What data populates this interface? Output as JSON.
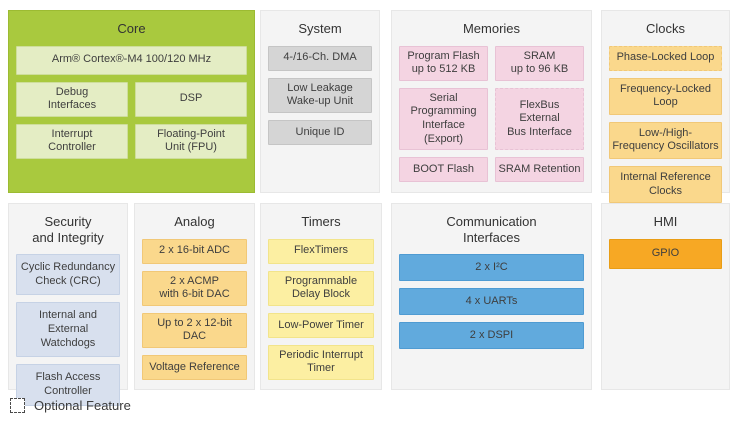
{
  "colors": {
    "core_panel_bg": "#a9c93e",
    "core_block_bg": "#e4edc4",
    "panel_bg": "#f4f4f4",
    "system_block_gray": "#d5d5d5",
    "memories_block_pink": "#f4d4e2",
    "clocks_analog_block_amber": "#fad88c",
    "timers_block_yellow": "#fcefa2",
    "comm_block_blue": "#61aadd",
    "hmi_block_orange": "#f7a824",
    "security_block_bluegray": "#d8e0ee"
  },
  "panels": {
    "core": {
      "title": "Core",
      "blocks": [
        {
          "label": "Arm® Cortex®-M4 100/120 MHz"
        },
        {
          "label": "Debug\nInterfaces"
        },
        {
          "label": "DSP"
        },
        {
          "label": "Interrupt\nController"
        },
        {
          "label": "Floating-Point\nUnit (FPU)"
        }
      ]
    },
    "system": {
      "title": "System",
      "blocks": [
        {
          "label": "4-/16-Ch. DMA"
        },
        {
          "label": "Low Leakage\nWake-up Unit"
        },
        {
          "label": "Unique ID"
        }
      ]
    },
    "memories": {
      "title": "Memories",
      "blocks": [
        {
          "label": "Program Flash\nup to 512 KB"
        },
        {
          "label": "SRAM\nup to 96 KB"
        },
        {
          "label": "Serial Programming\nInterface (Export)"
        },
        {
          "label": "FlexBus External\nBus Interface",
          "optional": true
        },
        {
          "label": "BOOT Flash"
        },
        {
          "label": "SRAM Retention"
        }
      ]
    },
    "clocks": {
      "title": "Clocks",
      "blocks": [
        {
          "label": "Phase-Locked Loop",
          "optional": true
        },
        {
          "label": "Frequency-Locked\nLoop"
        },
        {
          "label": "Low-/High-\nFrequency Oscillators"
        },
        {
          "label": "Internal Reference\nClocks"
        }
      ]
    },
    "security": {
      "title": "Security\nand Integrity",
      "blocks": [
        {
          "label": "Cyclic Redundancy\nCheck (CRC)"
        },
        {
          "label": "Internal and\nExternal Watchdogs"
        },
        {
          "label": "Flash Access\nController"
        }
      ]
    },
    "analog": {
      "title": "Analog",
      "blocks": [
        {
          "label": "2 x 16-bit ADC"
        },
        {
          "label": "2 x ACMP\nwith 6-bit DAC"
        },
        {
          "label": "Up to 2 x 12-bit DAC"
        },
        {
          "label": "Voltage Reference"
        }
      ]
    },
    "timers": {
      "title": "Timers",
      "blocks": [
        {
          "label": "FlexTimers"
        },
        {
          "label": "Programmable\nDelay Block"
        },
        {
          "label": "Low-Power Timer"
        },
        {
          "label": "Periodic Interrupt\nTimer"
        }
      ]
    },
    "comm": {
      "title": "Communication\nInterfaces",
      "blocks": [
        {
          "label": "2 x I²C"
        },
        {
          "label": "4 x UARTs"
        },
        {
          "label": "2 x DSPI"
        }
      ]
    },
    "hmi": {
      "title": "HMI",
      "blocks": [
        {
          "label": "GPIO"
        }
      ]
    }
  },
  "legend": {
    "label": "Optional Feature"
  }
}
